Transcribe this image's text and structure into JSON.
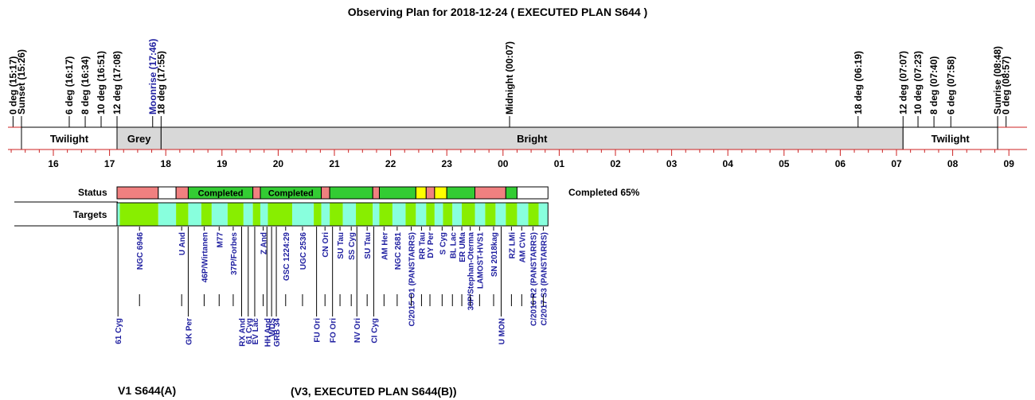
{
  "title": "Observing Plan for 2018-12-24 ( EXECUTED PLAN S644 )",
  "footer_left": "V1  S644(A)",
  "footer_right": "(V3, EXECUTED PLAN S644(B))",
  "labels": {
    "status": "Status",
    "targets": "Targets",
    "completed_summary": "Completed 65%"
  },
  "colors": {
    "night_line": "#cc2222",
    "grey_band": "#d8d8d8",
    "status_red": "#f08080",
    "status_green": "#33cc33",
    "status_yellow": "#ffff00",
    "target_green": "#88ee00",
    "target_cyan": "#88ffdd",
    "target_text": "#1f1fa0",
    "moon_text": "#1f1fa0"
  },
  "chart_data": {
    "type": "timeline",
    "x_unit": "hours (UT, after midnight shown as 24+)",
    "xlim": [
      15.0,
      33.0
    ],
    "hour_ticks": [
      {
        "h": 16,
        "label": "16"
      },
      {
        "h": 17,
        "label": "17"
      },
      {
        "h": 18,
        "label": "18"
      },
      {
        "h": 19,
        "label": "19"
      },
      {
        "h": 20,
        "label": "20"
      },
      {
        "h": 21,
        "label": "21"
      },
      {
        "h": 22,
        "label": "22"
      },
      {
        "h": 23,
        "label": "23"
      },
      {
        "h": 24,
        "label": "00"
      },
      {
        "h": 25,
        "label": "01"
      },
      {
        "h": 26,
        "label": "02"
      },
      {
        "h": 27,
        "label": "03"
      },
      {
        "h": 28,
        "label": "04"
      },
      {
        "h": 29,
        "label": "05"
      },
      {
        "h": 30,
        "label": "06"
      },
      {
        "h": 31,
        "label": "07"
      },
      {
        "h": 32,
        "label": "08"
      },
      {
        "h": 33,
        "label": "09"
      }
    ],
    "events": [
      {
        "label": "0 deg (15:17)",
        "h": 15.283,
        "color": "#000000"
      },
      {
        "label": "Sunset (15:26)",
        "h": 15.433,
        "color": "#000000"
      },
      {
        "label": "6 deg (16:17)",
        "h": 16.283,
        "color": "#000000"
      },
      {
        "label": "8 deg (16:34)",
        "h": 16.567,
        "color": "#000000"
      },
      {
        "label": "10 deg (16:51)",
        "h": 16.85,
        "color": "#000000"
      },
      {
        "label": "12 deg (17:08)",
        "h": 17.133,
        "color": "#000000"
      },
      {
        "label": "Moonrise (17:46)",
        "h": 17.767,
        "color": "#1f1fa0"
      },
      {
        "label": "18 deg (17:55)",
        "h": 17.917,
        "color": "#000000"
      },
      {
        "label": "Midnight (00:07)",
        "h": 24.117,
        "color": "#000000"
      },
      {
        "label": "18 deg (06:19)",
        "h": 30.317,
        "color": "#000000"
      },
      {
        "label": "12 deg (07:07)",
        "h": 31.117,
        "color": "#000000"
      },
      {
        "label": "10 deg (07:23)",
        "h": 31.383,
        "color": "#000000"
      },
      {
        "label": "8 deg (07:40)",
        "h": 31.667,
        "color": "#000000"
      },
      {
        "label": "6 deg (07:58)",
        "h": 31.967,
        "color": "#000000"
      },
      {
        "label": "Sunrise (08:48)",
        "h": 32.8,
        "color": "#000000"
      },
      {
        "label": "0 deg (08:57)",
        "h": 32.95,
        "color": "#000000"
      }
    ],
    "bands": [
      {
        "label": "Twilight",
        "start": 15.433,
        "end": 17.133,
        "fill": "#ffffff"
      },
      {
        "label": "Grey",
        "start": 17.133,
        "end": 17.917,
        "fill": "#d8d8d8"
      },
      {
        "label": "Bright",
        "start": 17.917,
        "end": 31.117,
        "fill": "#d8d8d8"
      },
      {
        "label": "Twilight",
        "start": 31.117,
        "end": 32.8,
        "fill": "#ffffff"
      }
    ],
    "status_segments": [
      {
        "start": 17.133,
        "end": 17.867,
        "state": "red",
        "label": ""
      },
      {
        "start": 17.867,
        "end": 18.183,
        "state": "empty",
        "label": ""
      },
      {
        "start": 18.183,
        "end": 18.4,
        "state": "red",
        "label": ""
      },
      {
        "start": 18.4,
        "end": 19.55,
        "state": "green",
        "label": "Completed"
      },
      {
        "start": 19.55,
        "end": 19.683,
        "state": "red",
        "label": ""
      },
      {
        "start": 19.683,
        "end": 20.767,
        "state": "green",
        "label": "Completed"
      },
      {
        "start": 20.767,
        "end": 20.917,
        "state": "red",
        "label": ""
      },
      {
        "start": 20.917,
        "end": 21.683,
        "state": "green",
        "label": ""
      },
      {
        "start": 21.683,
        "end": 21.8,
        "state": "red",
        "label": ""
      },
      {
        "start": 21.8,
        "end": 22.45,
        "state": "green",
        "label": ""
      },
      {
        "start": 22.45,
        "end": 22.633,
        "state": "yellow",
        "label": ""
      },
      {
        "start": 22.633,
        "end": 22.783,
        "state": "red",
        "label": ""
      },
      {
        "start": 22.783,
        "end": 23.0,
        "state": "yellow",
        "label": ""
      },
      {
        "start": 23.0,
        "end": 23.5,
        "state": "green",
        "label": ""
      },
      {
        "start": 23.5,
        "end": 24.05,
        "state": "red",
        "label": ""
      },
      {
        "start": 24.05,
        "end": 24.25,
        "state": "green",
        "label": ""
      },
      {
        "start": 24.25,
        "end": 24.8,
        "state": "empty",
        "label": ""
      }
    ],
    "target_blocks": [
      {
        "start": 17.133,
        "end": 17.183,
        "color": "cyan"
      },
      {
        "start": 17.183,
        "end": 17.867,
        "color": "green"
      },
      {
        "start": 17.867,
        "end": 18.183,
        "color": "cyan"
      },
      {
        "start": 18.183,
        "end": 18.4,
        "color": "green"
      },
      {
        "start": 18.4,
        "end": 18.633,
        "color": "cyan"
      },
      {
        "start": 18.633,
        "end": 18.817,
        "color": "green"
      },
      {
        "start": 18.817,
        "end": 19.1,
        "color": "cyan"
      },
      {
        "start": 19.1,
        "end": 19.383,
        "color": "green"
      },
      {
        "start": 19.383,
        "end": 19.55,
        "color": "cyan"
      },
      {
        "start": 19.55,
        "end": 19.683,
        "color": "green"
      },
      {
        "start": 19.683,
        "end": 19.817,
        "color": "cyan"
      },
      {
        "start": 19.817,
        "end": 20.25,
        "color": "green"
      },
      {
        "start": 20.25,
        "end": 20.633,
        "color": "cyan"
      },
      {
        "start": 20.633,
        "end": 20.767,
        "color": "green"
      },
      {
        "start": 20.767,
        "end": 20.917,
        "color": "cyan"
      },
      {
        "start": 20.917,
        "end": 21.15,
        "color": "green"
      },
      {
        "start": 21.15,
        "end": 21.383,
        "color": "cyan"
      },
      {
        "start": 21.383,
        "end": 21.683,
        "color": "green"
      },
      {
        "start": 21.683,
        "end": 21.8,
        "color": "cyan"
      },
      {
        "start": 21.8,
        "end": 22.033,
        "color": "green"
      },
      {
        "start": 22.033,
        "end": 22.267,
        "color": "cyan"
      },
      {
        "start": 22.267,
        "end": 22.45,
        "color": "green"
      },
      {
        "start": 22.45,
        "end": 22.633,
        "color": "cyan"
      },
      {
        "start": 22.633,
        "end": 22.783,
        "color": "green"
      },
      {
        "start": 22.783,
        "end": 22.933,
        "color": "cyan"
      },
      {
        "start": 22.933,
        "end": 23.1,
        "color": "green"
      },
      {
        "start": 23.1,
        "end": 23.267,
        "color": "cyan"
      },
      {
        "start": 23.267,
        "end": 23.5,
        "color": "green"
      },
      {
        "start": 23.5,
        "end": 23.683,
        "color": "cyan"
      },
      {
        "start": 23.683,
        "end": 23.867,
        "color": "green"
      },
      {
        "start": 23.867,
        "end": 24.05,
        "color": "cyan"
      },
      {
        "start": 24.05,
        "end": 24.25,
        "color": "green"
      },
      {
        "start": 24.25,
        "end": 24.45,
        "color": "cyan"
      },
      {
        "start": 24.45,
        "end": 24.633,
        "color": "green"
      },
      {
        "start": 24.633,
        "end": 24.8,
        "color": "cyan"
      }
    ],
    "targets_upper": [
      {
        "name": "NGC 6946",
        "h": 17.533
      },
      {
        "name": "U And",
        "h": 18.283
      },
      {
        "name": "46P/Wirtanen",
        "h": 18.683
      },
      {
        "name": "M77",
        "h": 18.95
      },
      {
        "name": "37P/Forbes",
        "h": 19.2
      },
      {
        "name": "Z And",
        "h": 19.733
      },
      {
        "name": "GSC 1224:29",
        "h": 20.133
      },
      {
        "name": "UGC 2536",
        "h": 20.433
      },
      {
        "name": "CN Ori",
        "h": 20.833
      },
      {
        "name": "SU Tau",
        "h": 21.1
      },
      {
        "name": "SS Cyg",
        "h": 21.3
      },
      {
        "name": "SU Tau",
        "h": 21.583
      },
      {
        "name": "AM Her",
        "h": 21.883
      },
      {
        "name": "NGC 2681",
        "h": 22.117
      },
      {
        "name": "C/2015 O1 (PANSTARRS)",
        "h": 22.367
      },
      {
        "name": "RR Tau",
        "h": 22.55
      },
      {
        "name": "DY Per",
        "h": 22.7
      },
      {
        "name": "S Cyg",
        "h": 22.917
      },
      {
        "name": "BL Lac",
        "h": 23.1
      },
      {
        "name": "ER UMa",
        "h": 23.267
      },
      {
        "name": "38P/Stephan-Oterma",
        "h": 23.417
      },
      {
        "name": "LAMOST-HVS1",
        "h": 23.583
      },
      {
        "name": "SN 2018kag",
        "h": 23.833
      },
      {
        "name": "RZ LMi",
        "h": 24.15
      },
      {
        "name": "AM CVn",
        "h": 24.333
      },
      {
        "name": "C/2016 R2 (PANSTARRS)",
        "h": 24.533
      },
      {
        "name": "C/2017 S3 (PANSTARRS)",
        "h": 24.717
      }
    ],
    "targets_lower": [
      {
        "name": "61 Cyg",
        "h": 17.15
      },
      {
        "name": "GK Per",
        "h": 18.4
      },
      {
        "name": "RX And",
        "h": 19.35
      },
      {
        "name": "61 Cyg",
        "h": 19.467
      },
      {
        "name": "EV Lac",
        "h": 19.583
      },
      {
        "name": "HH And",
        "h": 19.8
      },
      {
        "name": "WDS",
        "h": 19.883
      },
      {
        "name": "GRB 34",
        "h": 19.967
      },
      {
        "name": "FU Ori",
        "h": 20.683
      },
      {
        "name": "FO Ori",
        "h": 20.967
      },
      {
        "name": "NV Ori",
        "h": 21.4
      },
      {
        "name": "CI Cyg",
        "h": 21.7
      },
      {
        "name": "U MON",
        "h": 23.967
      }
    ]
  }
}
